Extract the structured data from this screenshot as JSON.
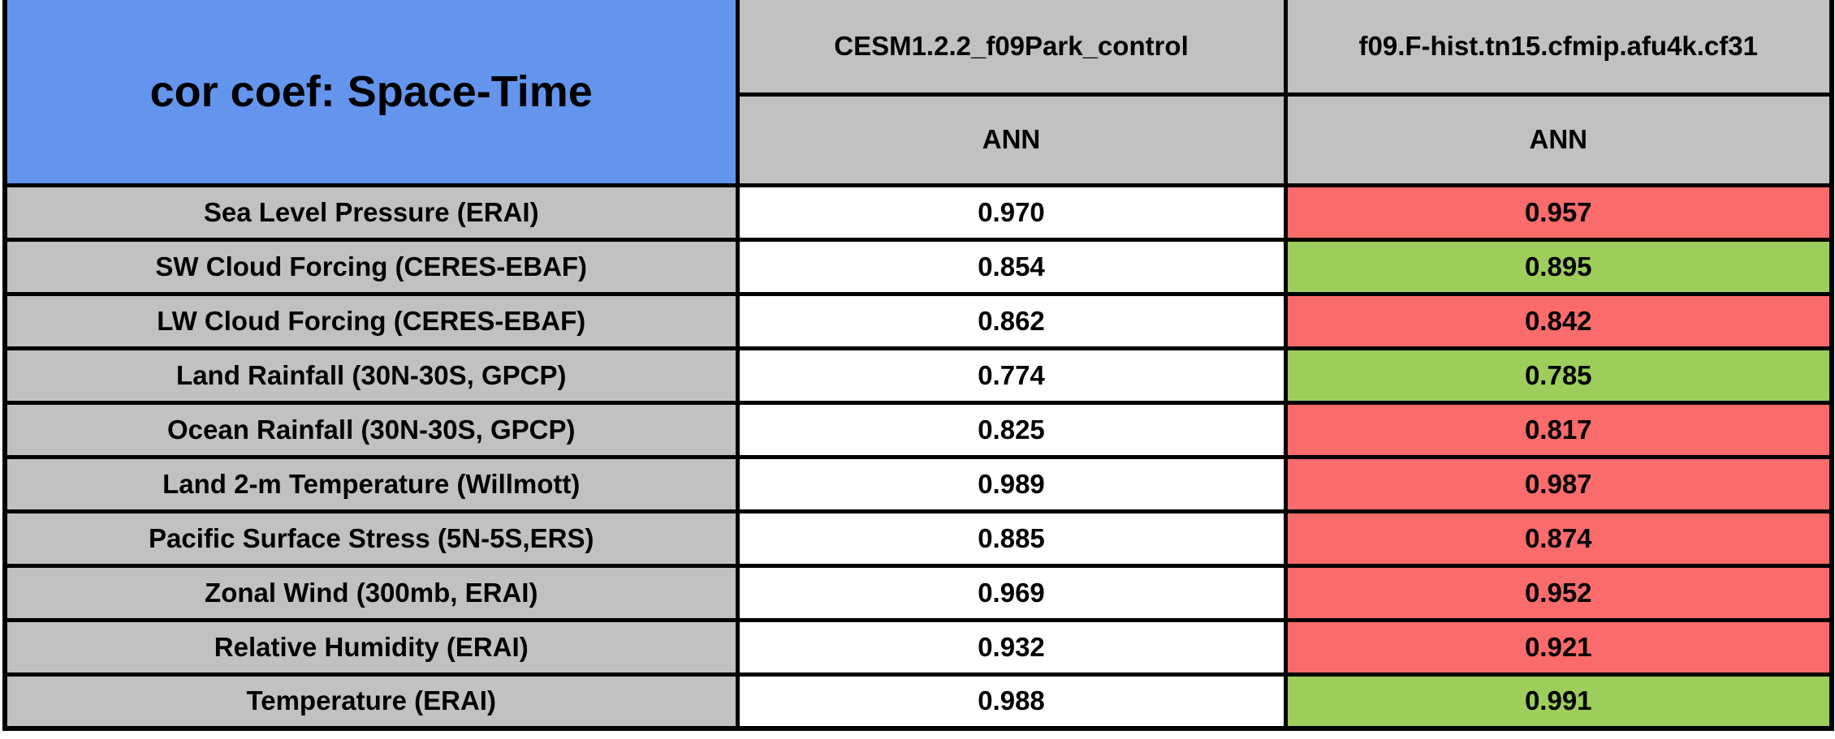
{
  "chart_data": {
    "type": "table",
    "title": "cor coef: Space-Time",
    "columns": [
      {
        "model": "CESM1.2.2_f09Park_control",
        "season": "ANN"
      },
      {
        "model": "f09.F-hist.tn15.cfmip.afu4k.cf31",
        "season": "ANN"
      }
    ],
    "rows": [
      {
        "variable": "Sea Level Pressure (ERAI)",
        "values": [
          "0.970",
          "0.957"
        ],
        "status": "worse"
      },
      {
        "variable": "SW Cloud Forcing (CERES-EBAF)",
        "values": [
          "0.854",
          "0.895"
        ],
        "status": "better"
      },
      {
        "variable": "LW Cloud Forcing (CERES-EBAF)",
        "values": [
          "0.862",
          "0.842"
        ],
        "status": "worse"
      },
      {
        "variable": "Land Rainfall (30N-30S, GPCP)",
        "values": [
          "0.774",
          "0.785"
        ],
        "status": "better"
      },
      {
        "variable": "Ocean Rainfall (30N-30S, GPCP)",
        "values": [
          "0.825",
          "0.817"
        ],
        "status": "worse"
      },
      {
        "variable": "Land 2-m Temperature (Willmott)",
        "values": [
          "0.989",
          "0.987"
        ],
        "status": "worse"
      },
      {
        "variable": "Pacific Surface Stress (5N-5S,ERS)",
        "values": [
          "0.885",
          "0.874"
        ],
        "status": "worse"
      },
      {
        "variable": "Zonal Wind (300mb, ERAI)",
        "values": [
          "0.969",
          "0.952"
        ],
        "status": "worse"
      },
      {
        "variable": "Relative Humidity (ERAI)",
        "values": [
          "0.932",
          "0.921"
        ],
        "status": "worse"
      },
      {
        "variable": "Temperature (ERAI)",
        "values": [
          "0.988",
          "0.991"
        ],
        "status": "better"
      }
    ],
    "colors": {
      "title_bg": "#6495ED",
      "header_bg": "#C1C1C1",
      "label_bg": "#C1C1C1",
      "value_bg": "#FFFFFF",
      "better_green": "#9DCE5C",
      "worse_red": "#FA6B6C",
      "grid_border": "#000000"
    }
  }
}
